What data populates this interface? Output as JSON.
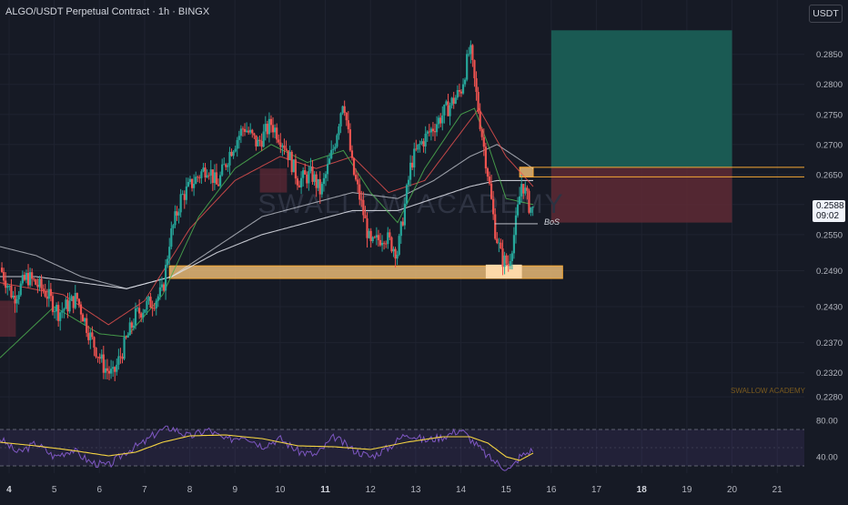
{
  "header": {
    "title": "ALGO/USDT Perpetual Contract · 1h · BINGX",
    "currency_button": "USDT"
  },
  "current_price": {
    "price": "0.2588",
    "countdown": "09:02"
  },
  "watermark": "SWALLOW ACADEMY",
  "footer_brand": "SWALLOW ACADEMY",
  "annotation_bos": "BoS",
  "colors": {
    "background": "#161a25",
    "up_candle": "#26a69a",
    "down_candle": "#ef5350",
    "ema_fast": "#4caf50",
    "ema_slow": "#ef5350",
    "ma_white": "#e0e3eb",
    "zone_fill": "#f5c37a",
    "zone_border": "#f7a935",
    "target_fill": "#1a5e55",
    "stop_fill": "#5e2a35",
    "rsi_line": "#7e57c2",
    "rsi_ma": "#f5d442"
  },
  "chart_data": [
    {
      "type": "candlestick",
      "title": "ALGO/USDT Perpetual Contract · 1h · BINGX",
      "x_ticks": [
        "4",
        "5",
        "6",
        "7",
        "8",
        "9",
        "10",
        "11",
        "12",
        "13",
        "14",
        "15",
        "16",
        "17",
        "18",
        "19",
        "20",
        "21"
      ],
      "y_ticks": [
        "0.2850",
        "0.2800",
        "0.2750",
        "0.2700",
        "0.2650",
        "0.2600",
        "0.2550",
        "0.2490",
        "0.2430",
        "0.2370",
        "0.2320",
        "0.2280"
      ],
      "ylim": [
        0.2262,
        0.2895
      ],
      "x_range": [
        3.8,
        21.6
      ],
      "price_path": [
        [
          3.8,
          0.2495
        ],
        [
          4.1,
          0.2445
        ],
        [
          4.4,
          0.248
        ],
        [
          4.8,
          0.2455
        ],
        [
          5.1,
          0.242
        ],
        [
          5.5,
          0.2445
        ],
        [
          5.8,
          0.238
        ],
        [
          6.1,
          0.233
        ],
        [
          6.3,
          0.2315
        ],
        [
          6.6,
          0.2375
        ],
        [
          6.8,
          0.2415
        ],
        [
          7.0,
          0.243
        ],
        [
          7.2,
          0.244
        ],
        [
          7.4,
          0.2455
        ],
        [
          7.55,
          0.254
        ],
        [
          7.8,
          0.261
        ],
        [
          8.1,
          0.264
        ],
        [
          8.4,
          0.2665
        ],
        [
          8.6,
          0.263
        ],
        [
          8.9,
          0.269
        ],
        [
          9.2,
          0.273
        ],
        [
          9.5,
          0.27
        ],
        [
          9.8,
          0.2735
        ],
        [
          10.1,
          0.27
        ],
        [
          10.4,
          0.264
        ],
        [
          10.7,
          0.265
        ],
        [
          10.9,
          0.262
        ],
        [
          11.2,
          0.27
        ],
        [
          11.4,
          0.278
        ],
        [
          11.6,
          0.266
        ],
        [
          11.8,
          0.26
        ],
        [
          12.0,
          0.253
        ],
        [
          12.3,
          0.255
        ],
        [
          12.6,
          0.252
        ],
        [
          12.9,
          0.267
        ],
        [
          13.1,
          0.27
        ],
        [
          13.4,
          0.273
        ],
        [
          13.7,
          0.276
        ],
        [
          14.0,
          0.279
        ],
        [
          14.2,
          0.286
        ],
        [
          14.4,
          0.275
        ],
        [
          14.6,
          0.265
        ],
        [
          14.75,
          0.256
        ],
        [
          14.9,
          0.251
        ],
        [
          15.05,
          0.25
        ],
        [
          15.2,
          0.256
        ],
        [
          15.35,
          0.264
        ],
        [
          15.5,
          0.26
        ],
        [
          15.62,
          0.2588
        ]
      ],
      "overlays": {
        "ema_fast_path": [
          [
            3.8,
            0.2345
          ],
          [
            5.0,
            0.243
          ],
          [
            6.0,
            0.2385
          ],
          [
            6.6,
            0.238
          ],
          [
            7.4,
            0.245
          ],
          [
            8.2,
            0.258
          ],
          [
            9.0,
            0.266
          ],
          [
            9.8,
            0.27
          ],
          [
            10.6,
            0.267
          ],
          [
            11.4,
            0.269
          ],
          [
            12.0,
            0.262
          ],
          [
            12.6,
            0.257
          ],
          [
            13.2,
            0.266
          ],
          [
            14.0,
            0.275
          ],
          [
            14.3,
            0.276
          ],
          [
            14.6,
            0.27
          ],
          [
            15.0,
            0.261
          ],
          [
            15.6,
            0.26
          ]
        ],
        "ema_slow_path": [
          [
            3.8,
            0.247
          ],
          [
            5.2,
            0.245
          ],
          [
            6.2,
            0.24
          ],
          [
            7.0,
            0.244
          ],
          [
            8.0,
            0.256
          ],
          [
            9.0,
            0.264
          ],
          [
            10.0,
            0.268
          ],
          [
            10.8,
            0.266
          ],
          [
            11.6,
            0.268
          ],
          [
            12.4,
            0.262
          ],
          [
            13.2,
            0.264
          ],
          [
            14.0,
            0.272
          ],
          [
            14.4,
            0.276
          ],
          [
            15.0,
            0.268
          ],
          [
            15.6,
            0.263
          ]
        ],
        "ma_slow_path": [
          [
            3.8,
            0.253
          ],
          [
            4.6,
            0.2515
          ],
          [
            5.6,
            0.248
          ],
          [
            6.6,
            0.246
          ],
          [
            7.6,
            0.248
          ],
          [
            8.6,
            0.253
          ],
          [
            9.6,
            0.258
          ],
          [
            10.6,
            0.26
          ],
          [
            11.6,
            0.262
          ],
          [
            12.6,
            0.261
          ],
          [
            13.4,
            0.264
          ],
          [
            14.2,
            0.268
          ],
          [
            14.8,
            0.27
          ],
          [
            15.6,
            0.266
          ]
        ],
        "ma_slower_path": [
          [
            3.8,
            0.248
          ],
          [
            4.6,
            0.248
          ],
          [
            5.6,
            0.247
          ],
          [
            6.6,
            0.246
          ],
          [
            7.6,
            0.248
          ],
          [
            8.6,
            0.252
          ],
          [
            9.6,
            0.255
          ],
          [
            10.6,
            0.257
          ],
          [
            11.6,
            0.259
          ],
          [
            12.6,
            0.259
          ],
          [
            13.4,
            0.261
          ],
          [
            14.2,
            0.263
          ],
          [
            14.8,
            0.264
          ],
          [
            15.6,
            0.264
          ]
        ]
      },
      "zones": [
        {
          "kind": "demand",
          "x": [
            7.55,
            16.25
          ],
          "y": [
            0.2477,
            0.2498
          ]
        },
        {
          "kind": "order_block",
          "x": [
            14.55,
            15.35
          ],
          "y": [
            0.2477,
            0.25
          ]
        },
        {
          "kind": "supply",
          "x": [
            15.3,
            15.6
          ],
          "y": [
            0.2646,
            0.2662
          ]
        },
        {
          "kind": "target",
          "x": [
            16.0,
            20.0
          ],
          "y": [
            0.2662,
            0.289
          ]
        },
        {
          "kind": "stop",
          "x": [
            16.0,
            20.0
          ],
          "y": [
            0.257,
            0.2662
          ]
        }
      ],
      "levels": [
        {
          "kind": "entry",
          "value": 0.2662,
          "x_from": 15.3
        },
        {
          "kind": "entry_low",
          "value": 0.2646,
          "x_from": 15.3
        },
        {
          "kind": "bos",
          "value": 0.2568,
          "x": [
            14.75,
            15.7
          ]
        }
      ]
    },
    {
      "type": "line",
      "indicator": "RSI",
      "y_ticks": [
        "80.00",
        "40.00"
      ],
      "ylim": [
        22,
        88
      ],
      "band": [
        70,
        30
      ],
      "mid": 50,
      "rsi_path": [
        [
          3.8,
          60
        ],
        [
          4.2,
          44
        ],
        [
          4.6,
          55
        ],
        [
          5.0,
          40
        ],
        [
          5.4,
          48
        ],
        [
          5.8,
          34
        ],
        [
          6.2,
          30
        ],
        [
          6.6,
          46
        ],
        [
          7.0,
          56
        ],
        [
          7.3,
          68
        ],
        [
          7.6,
          72
        ],
        [
          8.0,
          62
        ],
        [
          8.4,
          70
        ],
        [
          8.8,
          58
        ],
        [
          9.2,
          64
        ],
        [
          9.6,
          52
        ],
        [
          10.0,
          60
        ],
        [
          10.4,
          46
        ],
        [
          10.8,
          42
        ],
        [
          11.2,
          62
        ],
        [
          11.6,
          48
        ],
        [
          12.0,
          40
        ],
        [
          12.4,
          50
        ],
        [
          12.8,
          66
        ],
        [
          13.2,
          58
        ],
        [
          13.6,
          62
        ],
        [
          14.0,
          70
        ],
        [
          14.3,
          55
        ],
        [
          14.6,
          40
        ],
        [
          14.9,
          30
        ],
        [
          15.1,
          26
        ],
        [
          15.3,
          40
        ],
        [
          15.6,
          48
        ]
      ],
      "rsi_ma_path": [
        [
          3.8,
          56
        ],
        [
          4.6,
          52
        ],
        [
          5.4,
          47
        ],
        [
          6.2,
          41
        ],
        [
          6.8,
          45
        ],
        [
          7.4,
          56
        ],
        [
          8.0,
          63
        ],
        [
          8.8,
          64
        ],
        [
          9.6,
          60
        ],
        [
          10.4,
          52
        ],
        [
          11.2,
          51
        ],
        [
          12.0,
          48
        ],
        [
          12.8,
          56
        ],
        [
          13.6,
          62
        ],
        [
          14.2,
          62
        ],
        [
          14.6,
          55
        ],
        [
          15.0,
          40
        ],
        [
          15.3,
          36
        ],
        [
          15.6,
          44
        ]
      ]
    }
  ]
}
